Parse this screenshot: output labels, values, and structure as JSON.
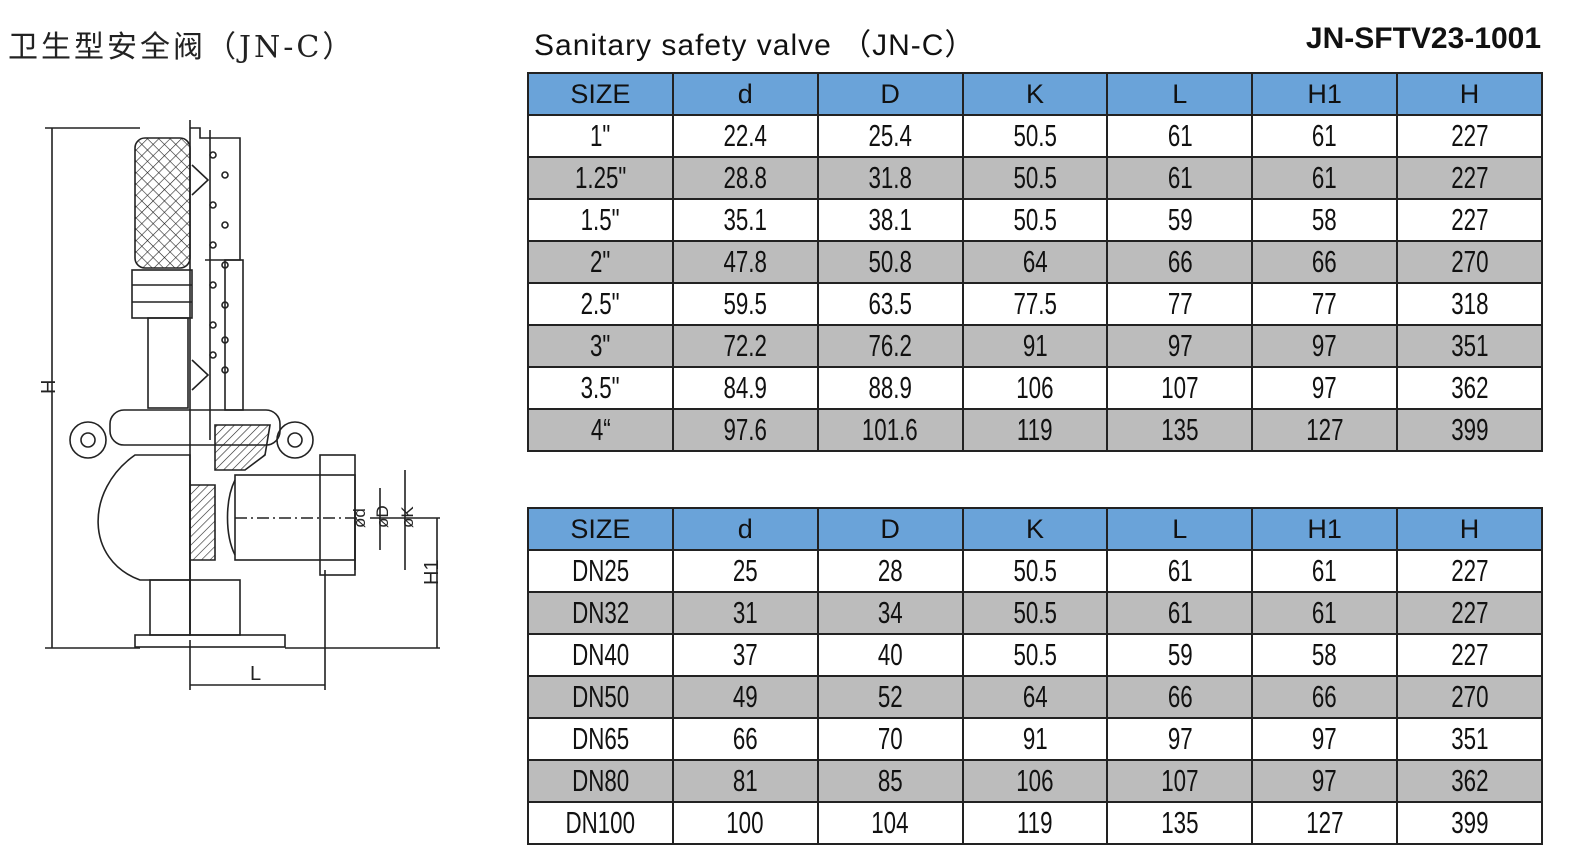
{
  "header": {
    "title_cn": "卫生型安全阀（JN-C）",
    "title_en": "Sanitary safety valve （JN-C）",
    "model": "JN-SFTV23-1001"
  },
  "drawing": {
    "labels": {
      "H": "H",
      "H1": "H1",
      "L": "L",
      "d": "ød",
      "D": "øD",
      "K": "øK"
    }
  },
  "table1": {
    "columns": [
      "SIZE",
      "d",
      "D",
      "K",
      "L",
      "H1",
      "H"
    ],
    "rows": [
      [
        "1\"",
        "22.4",
        "25.4",
        "50.5",
        "61",
        "61",
        "227"
      ],
      [
        "1.25\"",
        "28.8",
        "31.8",
        "50.5",
        "61",
        "61",
        "227"
      ],
      [
        "1.5\"",
        "35.1",
        "38.1",
        "50.5",
        "59",
        "58",
        "227"
      ],
      [
        "2\"",
        "47.8",
        "50.8",
        "64",
        "66",
        "66",
        "270"
      ],
      [
        "2.5\"",
        "59.5",
        "63.5",
        "77.5",
        "77",
        "77",
        "318"
      ],
      [
        "3\"",
        "72.2",
        "76.2",
        "91",
        "97",
        "97",
        "351"
      ],
      [
        "3.5\"",
        "84.9",
        "88.9",
        "106",
        "107",
        "97",
        "362"
      ],
      [
        "4“",
        "97.6",
        "101.6",
        "119",
        "135",
        "127",
        "399"
      ]
    ]
  },
  "table2": {
    "columns": [
      "SIZE",
      "d",
      "D",
      "K",
      "L",
      "H1",
      "H"
    ],
    "rows": [
      [
        "DN25",
        "25",
        "28",
        "50.5",
        "61",
        "61",
        "227"
      ],
      [
        "DN32",
        "31",
        "34",
        "50.5",
        "61",
        "61",
        "227"
      ],
      [
        "DN40",
        "37",
        "40",
        "50.5",
        "59",
        "58",
        "227"
      ],
      [
        "DN50",
        "49",
        "52",
        "64",
        "66",
        "66",
        "270"
      ],
      [
        "DN65",
        "66",
        "70",
        "91",
        "97",
        "97",
        "351"
      ],
      [
        "DN80",
        "81",
        "85",
        "106",
        "107",
        "97",
        "362"
      ],
      [
        "DN100",
        "100",
        "104",
        "119",
        "135",
        "127",
        "399"
      ]
    ]
  }
}
